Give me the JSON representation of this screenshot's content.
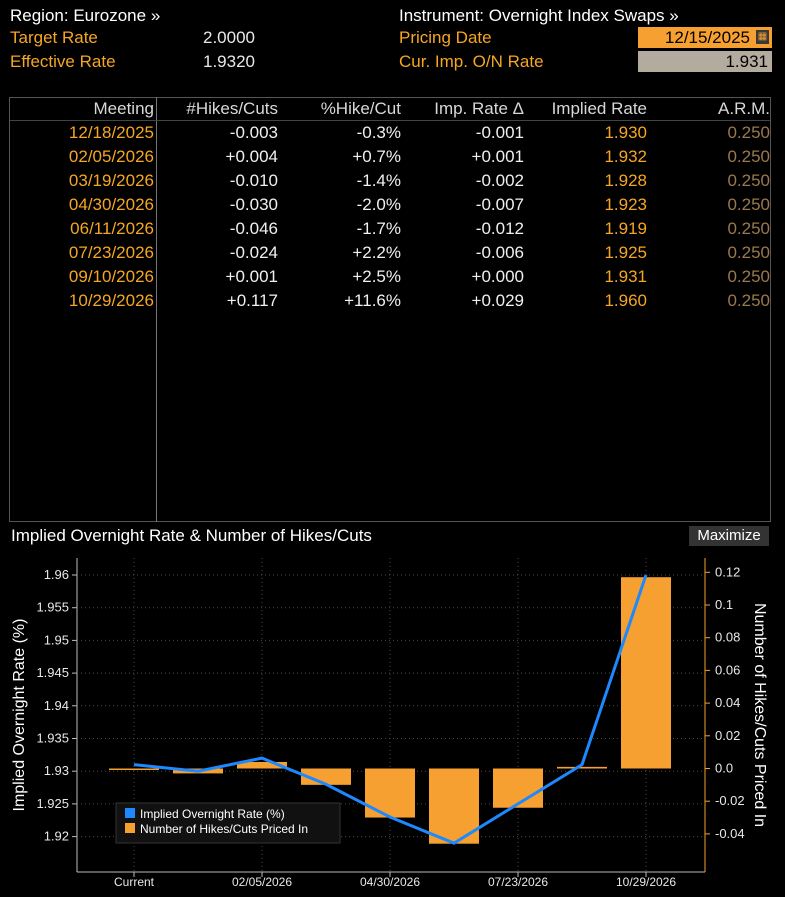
{
  "header": {
    "region_label": "Region: Eurozone »",
    "instrument_label": "Instrument: Overnight Index Swaps »",
    "target_rate_label": "Target Rate",
    "target_rate_value": "2.0000",
    "effective_rate_label": "Effective Rate",
    "effective_rate_value": "1.9320",
    "pricing_date_label": "Pricing Date",
    "pricing_date_value": "12/15/2025",
    "cur_imp_label": "Cur. Imp. O/N Rate",
    "cur_imp_value": "1.931"
  },
  "table": {
    "columns": [
      "Meeting",
      "#Hikes/Cuts",
      "%Hike/Cut",
      "Imp. Rate Δ",
      "Implied Rate",
      "A.R.M."
    ],
    "rows": [
      {
        "meeting": "12/18/2025",
        "hikes": "-0.003",
        "pct": "-0.3%",
        "delta": "-0.001",
        "implied": "1.930",
        "arm": "0.250"
      },
      {
        "meeting": "02/05/2026",
        "hikes": "+0.004",
        "pct": "+0.7%",
        "delta": "+0.001",
        "implied": "1.932",
        "arm": "0.250"
      },
      {
        "meeting": "03/19/2026",
        "hikes": "-0.010",
        "pct": "-1.4%",
        "delta": "-0.002",
        "implied": "1.928",
        "arm": "0.250"
      },
      {
        "meeting": "04/30/2026",
        "hikes": "-0.030",
        "pct": "-2.0%",
        "delta": "-0.007",
        "implied": "1.923",
        "arm": "0.250"
      },
      {
        "meeting": "06/11/2026",
        "hikes": "-0.046",
        "pct": "-1.7%",
        "delta": "-0.012",
        "implied": "1.919",
        "arm": "0.250"
      },
      {
        "meeting": "07/23/2026",
        "hikes": "-0.024",
        "pct": "+2.2%",
        "delta": "-0.006",
        "implied": "1.925",
        "arm": "0.250"
      },
      {
        "meeting": "09/10/2026",
        "hikes": "+0.001",
        "pct": "+2.5%",
        "delta": "+0.000",
        "implied": "1.931",
        "arm": "0.250"
      },
      {
        "meeting": "10/29/2026",
        "hikes": "+0.117",
        "pct": "+11.6%",
        "delta": "+0.029",
        "implied": "1.960",
        "arm": "0.250"
      }
    ]
  },
  "chart": {
    "title": "Implied Overnight Rate & Number of Hikes/Cuts",
    "maximize_label": "Maximize"
  },
  "chart_data": {
    "type": "bar",
    "categories": [
      "Current",
      "12/18/2025",
      "02/05/2026",
      "03/19/2026",
      "04/30/2026",
      "06/11/2026",
      "07/23/2026",
      "09/10/2026",
      "10/29/2026"
    ],
    "x_tick_labels": [
      "Current",
      "02/05/2026",
      "04/30/2026",
      "07/23/2026",
      "10/29/2026"
    ],
    "series": [
      {
        "name": "Implied Overnight Rate (%)",
        "kind": "line",
        "axis": "left",
        "color": "#1e88ff",
        "values": [
          1.931,
          1.93,
          1.932,
          1.928,
          1.923,
          1.919,
          1.925,
          1.931,
          1.96
        ]
      },
      {
        "name": "Number of Hikes/Cuts Priced In",
        "kind": "bar",
        "axis": "right",
        "color": "#f5a031",
        "values": [
          0.0,
          -0.003,
          0.004,
          -0.01,
          -0.03,
          -0.046,
          -0.024,
          0.001,
          0.117
        ]
      }
    ],
    "ylabel": "Implied Overnight Rate (%)",
    "y2label": "Number of Hikes/Cuts Priced In",
    "ylim": [
      1.915,
      1.96
    ],
    "y2lim": [
      -0.046,
      0.12
    ],
    "yticks": [
      "1.96",
      "1.955",
      "1.95",
      "1.945",
      "1.94",
      "1.935",
      "1.93",
      "1.925",
      "1.92"
    ],
    "y2ticks": [
      "0.12",
      "0.1",
      "0.08",
      "0.06",
      "0.04",
      "0.02",
      "0.0",
      "-0.02",
      "-0.04"
    ],
    "legend_position": "bottom-left",
    "grid": true
  }
}
